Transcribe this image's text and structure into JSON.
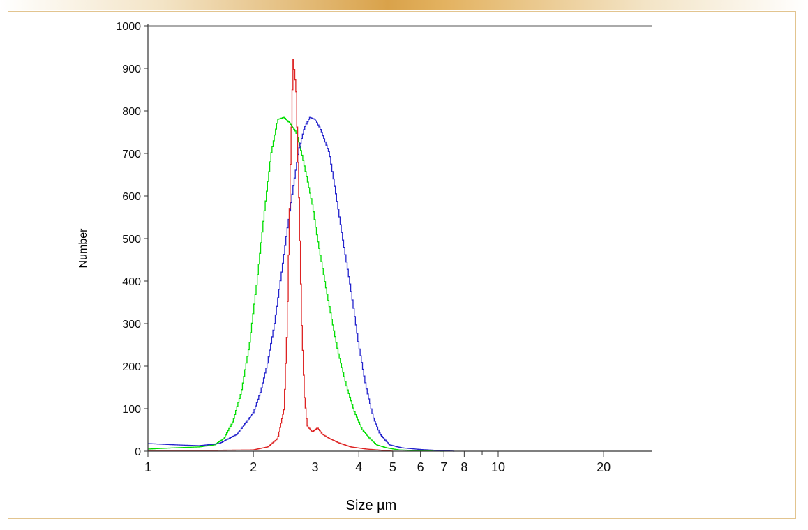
{
  "chart_data": {
    "type": "line",
    "title": "",
    "xlabel": "Size µm",
    "ylabel": "Number",
    "x_scale": "log",
    "xlim": [
      1,
      25
    ],
    "ylim": [
      0,
      1000
    ],
    "y_ticks": [
      "0",
      "100",
      "200",
      "300",
      "400",
      "500",
      "600",
      "700",
      "800",
      "900",
      "1000"
    ],
    "x_ticks": [
      {
        "value": 1,
        "label": "1"
      },
      {
        "value": 2,
        "label": "2"
      },
      {
        "value": 3,
        "label": "3"
      },
      {
        "value": 4,
        "label": "4"
      },
      {
        "value": 5,
        "label": "5"
      },
      {
        "value": 6,
        "label": "6"
      },
      {
        "value": 7,
        "label": "7"
      },
      {
        "value": 8,
        "label": "8"
      },
      {
        "value": 10,
        "label": "10"
      },
      {
        "value": 20,
        "label": "20"
      }
    ],
    "grid": false,
    "legend": "none",
    "series": [
      {
        "color": "#00dd00",
        "x": [
          1.0,
          1.2,
          1.4,
          1.55,
          1.65,
          1.75,
          1.85,
          1.95,
          2.05,
          2.15,
          2.25,
          2.35,
          2.45,
          2.55,
          2.65,
          2.75,
          2.85,
          2.95,
          3.05,
          3.2,
          3.35,
          3.5,
          3.7,
          3.9,
          4.1,
          4.3,
          4.5,
          4.8,
          5.2,
          6.0,
          7.0
        ],
        "y": [
          5,
          8,
          10,
          15,
          30,
          70,
          140,
          250,
          400,
          560,
          700,
          780,
          785,
          770,
          750,
          700,
          640,
          580,
          500,
          400,
          310,
          230,
          150,
          90,
          50,
          30,
          15,
          8,
          3,
          1,
          0
        ]
      },
      {
        "color": "#2222cc",
        "x": [
          1.0,
          1.2,
          1.4,
          1.6,
          1.8,
          2.0,
          2.1,
          2.2,
          2.3,
          2.4,
          2.5,
          2.6,
          2.7,
          2.8,
          2.9,
          3.0,
          3.1,
          3.2,
          3.3,
          3.45,
          3.6,
          3.8,
          4.0,
          4.2,
          4.4,
          4.6,
          4.9,
          5.3,
          6.0,
          7.0,
          7.5
        ],
        "y": [
          18,
          15,
          13,
          18,
          40,
          90,
          140,
          210,
          300,
          410,
          520,
          620,
          710,
          760,
          785,
          780,
          760,
          730,
          700,
          600,
          500,
          380,
          250,
          150,
          80,
          40,
          15,
          8,
          4,
          1,
          0
        ]
      },
      {
        "color": "#dd2222",
        "x": [
          1.0,
          1.5,
          2.0,
          2.2,
          2.35,
          2.45,
          2.5,
          2.55,
          2.6,
          2.65,
          2.7,
          2.75,
          2.8,
          2.85,
          2.95,
          3.05,
          3.15,
          3.3,
          3.5,
          3.8,
          4.2,
          5.0
        ],
        "y": [
          2,
          2,
          3,
          10,
          30,
          100,
          300,
          650,
          925,
          850,
          600,
          300,
          130,
          60,
          45,
          55,
          40,
          30,
          20,
          10,
          5,
          0
        ]
      }
    ]
  }
}
